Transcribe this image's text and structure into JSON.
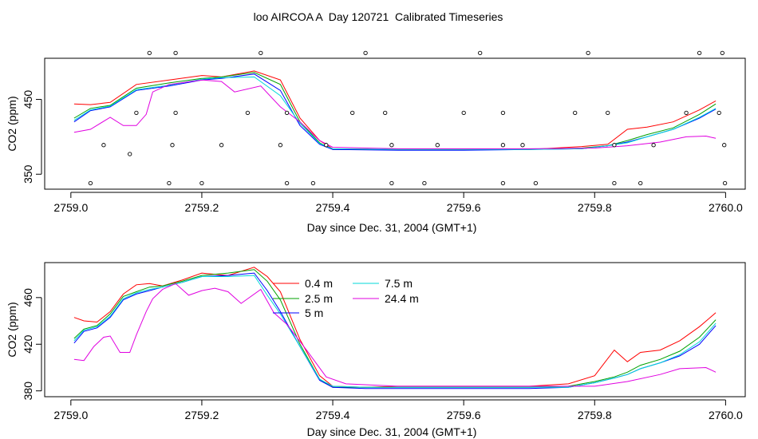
{
  "page_title": "loo AIRCOA A  Day 120721  Calibrated Timeseries",
  "chart_data": [
    {
      "type": "line",
      "xlabel": "Day since Dec. 31, 2004 (GMT+1)",
      "ylabel": "CO2 (ppm)",
      "xlim": [
        2758.96,
        2760.03
      ],
      "ylim": [
        330,
        505
      ],
      "x_ticks": [
        "2759.0",
        "2759.2",
        "2759.4",
        "2759.6",
        "2759.8",
        "2760.0"
      ],
      "x_tick_values": [
        2759.0,
        2759.2,
        2759.4,
        2759.6,
        2759.8,
        2760.0
      ],
      "y_ticks": [
        "350",
        "450"
      ],
      "y_tick_values": [
        350,
        450
      ],
      "series": [
        {
          "color": "#ff0000",
          "x": [
            2759.005,
            2759.03,
            2759.06,
            2759.1,
            2759.15,
            2759.2,
            2759.23,
            2759.28,
            2759.32,
            2759.35,
            2759.38,
            2759.4,
            2759.5,
            2759.6,
            2759.7,
            2759.78,
            2759.82,
            2759.85,
            2759.88,
            2759.92,
            2759.96,
            2759.985
          ],
          "y": [
            444,
            443,
            446,
            470,
            476,
            482,
            480,
            488,
            476,
            425,
            395,
            384,
            383,
            383,
            383,
            387,
            390,
            410,
            413,
            420,
            436,
            448
          ]
        },
        {
          "color": "#00a000",
          "x": [
            2759.005,
            2759.03,
            2759.06,
            2759.1,
            2759.15,
            2759.2,
            2759.23,
            2759.28,
            2759.32,
            2759.35,
            2759.38,
            2759.4,
            2759.5,
            2759.6,
            2759.7,
            2759.78,
            2759.82,
            2759.85,
            2759.88,
            2759.92,
            2759.96,
            2759.985
          ],
          "y": [
            425,
            438,
            442,
            465,
            472,
            478,
            480,
            486,
            470,
            420,
            392,
            383,
            383,
            383,
            383,
            385,
            388,
            395,
            403,
            412,
            430,
            444
          ]
        },
        {
          "color": "#0000ff",
          "x": [
            2759.005,
            2759.03,
            2759.06,
            2759.1,
            2759.15,
            2759.2,
            2759.23,
            2759.28,
            2759.32,
            2759.35,
            2759.38,
            2759.4,
            2759.5,
            2759.6,
            2759.7,
            2759.78,
            2759.82,
            2759.85,
            2759.88,
            2759.92,
            2759.96,
            2759.985
          ],
          "y": [
            420,
            435,
            440,
            462,
            468,
            476,
            478,
            484,
            462,
            415,
            390,
            383,
            382,
            382,
            383,
            384,
            388,
            393,
            400,
            410,
            425,
            437
          ]
        },
        {
          "color": "#00d8d8",
          "x": [
            2759.005,
            2759.03,
            2759.06,
            2759.1,
            2759.15,
            2759.2,
            2759.23,
            2759.28,
            2759.32,
            2759.35,
            2759.38,
            2759.4,
            2759.5,
            2759.6,
            2759.7,
            2759.78,
            2759.82,
            2759.85,
            2759.88,
            2759.92,
            2759.96,
            2759.985
          ],
          "y": [
            422,
            436,
            441,
            463,
            469,
            477,
            479,
            480,
            455,
            418,
            391,
            384,
            383,
            383,
            383,
            384,
            388,
            392,
            400,
            410,
            426,
            438
          ]
        },
        {
          "color": "#e000e0",
          "x": [
            2759.005,
            2759.03,
            2759.06,
            2759.08,
            2759.1,
            2759.115,
            2759.125,
            2759.15,
            2759.2,
            2759.23,
            2759.25,
            2759.29,
            2759.32,
            2759.35,
            2759.38,
            2759.4,
            2759.5,
            2759.6,
            2759.7,
            2759.8,
            2759.85,
            2759.9,
            2759.94,
            2759.97,
            2759.985
          ],
          "y": [
            406,
            410,
            426,
            415,
            415,
            430,
            460,
            470,
            476,
            474,
            460,
            468,
            440,
            420,
            395,
            386,
            384,
            384,
            384,
            385,
            388,
            393,
            400,
            401,
            398
          ]
        }
      ],
      "markers": {
        "x": [
          2759.03,
          2759.05,
          2759.09,
          2759.1,
          2759.12,
          2759.15,
          2759.155,
          2759.16,
          2759.16,
          2759.2,
          2759.23,
          2759.27,
          2759.29,
          2759.32,
          2759.33,
          2759.33,
          2759.37,
          2759.39,
          2759.43,
          2759.45,
          2759.48,
          2759.49,
          2759.49,
          2759.54,
          2759.56,
          2759.6,
          2759.625,
          2759.66,
          2759.66,
          2759.66,
          2759.69,
          2759.71,
          2759.77,
          2759.79,
          2759.82,
          2759.83,
          2759.83,
          2759.87,
          2759.89,
          2759.94,
          2759.96,
          2759.99,
          2759.995,
          2759.998,
          2759.999
        ],
        "y": [
          338,
          389,
          377,
          432,
          512,
          338,
          389,
          432,
          512,
          338,
          389,
          432,
          512,
          389,
          432,
          338,
          338,
          389,
          432,
          512,
          432,
          338,
          389,
          338,
          389,
          432,
          512,
          432,
          389,
          338,
          389,
          338,
          432,
          512,
          432,
          389,
          338,
          338,
          389,
          432,
          512,
          432,
          512,
          389,
          338
        ]
      }
    },
    {
      "type": "line",
      "xlabel": "Day since Dec. 31, 2004 (GMT+1)",
      "ylabel": "CO2 (ppm)",
      "xlim": [
        2758.96,
        2760.03
      ],
      "ylim": [
        375,
        490
      ],
      "x_ticks": [
        "2759.0",
        "2759.2",
        "2759.4",
        "2759.6",
        "2759.8",
        "2760.0"
      ],
      "x_tick_values": [
        2759.0,
        2759.2,
        2759.4,
        2759.6,
        2759.8,
        2760.0
      ],
      "y_ticks": [
        "380",
        "420",
        "460"
      ],
      "y_tick_values": [
        380,
        420,
        460
      ],
      "legend": {
        "placement": "top-center",
        "labels": [
          "0.4 m",
          "2.5 m",
          "5 m",
          "7.5 m",
          "24.4 m"
        ]
      },
      "series": [
        {
          "name": "0.4 m",
          "color": "#ff0000",
          "x": [
            2759.005,
            2759.02,
            2759.04,
            2759.06,
            2759.08,
            2759.1,
            2759.12,
            2759.14,
            2759.17,
            2759.2,
            2759.24,
            2759.28,
            2759.3,
            2759.32,
            2759.35,
            2759.38,
            2759.4,
            2759.45,
            2759.5,
            2759.6,
            2759.7,
            2759.76,
            2759.8,
            2759.83,
            2759.85,
            2759.87,
            2759.9,
            2759.93,
            2759.96,
            2759.985
          ],
          "y": [
            443,
            440,
            439,
            448,
            463,
            471,
            472,
            470,
            475,
            481,
            479,
            486,
            478,
            465,
            424,
            393,
            384,
            383,
            384,
            384,
            384,
            386,
            393,
            415,
            405,
            413,
            415,
            423,
            435,
            447
          ]
        },
        {
          "name": "2.5 m",
          "color": "#00a000",
          "x": [
            2759.005,
            2759.02,
            2759.04,
            2759.06,
            2759.08,
            2759.1,
            2759.12,
            2759.14,
            2759.17,
            2759.2,
            2759.24,
            2759.28,
            2759.3,
            2759.32,
            2759.35,
            2759.38,
            2759.4,
            2759.45,
            2759.5,
            2759.6,
            2759.7,
            2759.76,
            2759.8,
            2759.83,
            2759.85,
            2759.87,
            2759.9,
            2759.93,
            2759.96,
            2759.985
          ],
          "y": [
            425,
            433,
            436,
            446,
            461,
            465,
            469,
            470,
            474,
            479,
            481,
            484,
            474,
            458,
            420,
            390,
            383,
            383,
            383,
            383,
            383,
            384,
            388,
            392,
            396,
            402,
            407,
            414,
            426,
            441
          ]
        },
        {
          "name": "5 m",
          "color": "#0000ff",
          "x": [
            2759.005,
            2759.02,
            2759.04,
            2759.06,
            2759.08,
            2759.1,
            2759.12,
            2759.14,
            2759.17,
            2759.2,
            2759.24,
            2759.28,
            2759.3,
            2759.32,
            2759.35,
            2759.38,
            2759.4,
            2759.45,
            2759.5,
            2759.6,
            2759.7,
            2759.76,
            2759.8,
            2759.83,
            2759.85,
            2759.87,
            2759.9,
            2759.93,
            2759.96,
            2759.985
          ],
          "y": [
            421,
            431,
            434,
            443,
            458,
            463,
            466,
            469,
            473,
            478,
            479,
            481,
            466,
            448,
            418,
            389,
            383,
            382,
            382,
            382,
            382,
            383,
            387,
            391,
            394,
            399,
            404,
            410,
            420,
            436
          ]
        },
        {
          "name": "7.5 m",
          "color": "#00d8d8",
          "x": [
            2759.005,
            2759.02,
            2759.04,
            2759.06,
            2759.08,
            2759.1,
            2759.12,
            2759.14,
            2759.17,
            2759.2,
            2759.24,
            2759.28,
            2759.3,
            2759.32,
            2759.35,
            2759.38,
            2759.4,
            2759.45,
            2759.5,
            2759.6,
            2759.7,
            2759.76,
            2759.8,
            2759.83,
            2759.85,
            2759.87,
            2759.9,
            2759.93,
            2759.96,
            2759.985
          ],
          "y": [
            423,
            432,
            435,
            444,
            459,
            464,
            467,
            469,
            473,
            478,
            478,
            479,
            462,
            446,
            418,
            390,
            384,
            383,
            383,
            383,
            383,
            383,
            387,
            391,
            394,
            399,
            404,
            411,
            422,
            438
          ]
        },
        {
          "name": "24.4 m",
          "color": "#e000e0",
          "x": [
            2759.005,
            2759.02,
            2759.035,
            2759.05,
            2759.06,
            2759.075,
            2759.09,
            2759.1,
            2759.115,
            2759.125,
            2759.14,
            2759.16,
            2759.18,
            2759.2,
            2759.22,
            2759.24,
            2759.26,
            2759.29,
            2759.31,
            2759.33,
            2759.36,
            2759.39,
            2759.42,
            2759.5,
            2759.6,
            2759.7,
            2759.8,
            2759.85,
            2759.9,
            2759.93,
            2759.97,
            2759.985
          ],
          "y": [
            407,
            406,
            418,
            426,
            427,
            413,
            413,
            428,
            448,
            459,
            467,
            472,
            462,
            466,
            468,
            465,
            455,
            467,
            447,
            437,
            415,
            392,
            386,
            384,
            384,
            384,
            384,
            388,
            394,
            399,
            400,
            396
          ]
        }
      ]
    }
  ]
}
